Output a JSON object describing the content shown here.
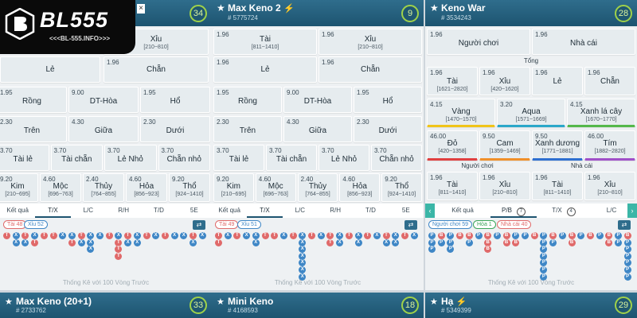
{
  "logo": {
    "brand": "BL555",
    "url": "<<<BL-555.INFO>>>"
  },
  "colors": {
    "header": "#1d5470",
    "red": "#e06a6a",
    "blue": "#3f87c6",
    "badge": "#9fd14a"
  },
  "panel1": {
    "close_icon": "×",
    "count": "34",
    "grid": {
      "r1": [
        {
          "name": "Xỉu",
          "range": "[210~810]"
        }
      ],
      "r2": [
        {
          "odds": "",
          "name": "Lẻ"
        },
        {
          "odds": "1.96",
          "name": "Chẵn"
        }
      ],
      "r3": [
        {
          "odds": "1.95",
          "name": "Rồng"
        },
        {
          "odds": "9.00",
          "name": "DT-Hòa"
        },
        {
          "odds": "1.95",
          "name": "Hổ"
        }
      ],
      "r4": [
        {
          "odds": "2.30",
          "name": "Trên"
        },
        {
          "odds": "4.30",
          "name": "Giữa"
        },
        {
          "odds": "2.30",
          "name": "Dưới"
        }
      ],
      "r5": [
        {
          "odds": "3.70",
          "name": "Tài lẻ"
        },
        {
          "odds": "3.70",
          "name": "Tài chẵn"
        },
        {
          "odds": "3.70",
          "name": "Lẻ Nhỏ"
        },
        {
          "odds": "3.70",
          "name": "Chẵn nhỏ"
        }
      ],
      "r6": [
        {
          "odds": "9.20",
          "name": "Kim",
          "range": "[210~695]"
        },
        {
          "odds": "4.60",
          "name": "Mộc",
          "range": "[696~763]"
        },
        {
          "odds": "2.40",
          "name": "Thủy",
          "range": "[764~855]"
        },
        {
          "odds": "4.60",
          "name": "Hỏa",
          "range": "[856~923]"
        },
        {
          "odds": "9.20",
          "name": "Thổ",
          "range": "[924~1410]"
        }
      ]
    },
    "tabs": [
      "Kết quả",
      "T/X",
      "L/C",
      "R/H",
      "T/D",
      "5E"
    ],
    "tally": [
      {
        "label": "Tài 48",
        "tone": "red"
      },
      {
        "label": "Xỉu 52",
        "tone": "blue"
      }
    ],
    "footer": "Thống Kê với 100 Vòng Trước"
  },
  "panel2": {
    "title": "Max Keno 2",
    "id": "# 5775724",
    "count": "9",
    "grid": {
      "r1": [
        {
          "odds": "1.96",
          "name": "Tài",
          "range": "[811~1410]"
        },
        {
          "odds": "1.96",
          "name": "Xỉu",
          "range": "[210~810]"
        }
      ],
      "r2": [
        {
          "odds": "1.96",
          "name": "Lẻ"
        },
        {
          "odds": "1.96",
          "name": "Chẵn"
        }
      ],
      "r3": [
        {
          "odds": "1.95",
          "name": "Rồng"
        },
        {
          "odds": "9.00",
          "name": "DT-Hòa"
        },
        {
          "odds": "1.95",
          "name": "Hổ"
        }
      ],
      "r4": [
        {
          "odds": "2.30",
          "name": "Trên"
        },
        {
          "odds": "4.30",
          "name": "Giữa"
        },
        {
          "odds": "2.30",
          "name": "Dưới"
        }
      ],
      "r5": [
        {
          "odds": "3.70",
          "name": "Tài lẻ"
        },
        {
          "odds": "3.70",
          "name": "Tài chẵn"
        },
        {
          "odds": "3.70",
          "name": "Lẻ Nhỏ"
        },
        {
          "odds": "3.70",
          "name": "Chẵn nhỏ"
        }
      ],
      "r6": [
        {
          "odds": "9.20",
          "name": "Kim",
          "range": "[210~695]"
        },
        {
          "odds": "4.60",
          "name": "Mộc",
          "range": "[696~763]"
        },
        {
          "odds": "2.40",
          "name": "Thủy",
          "range": "[764~855]"
        },
        {
          "odds": "4.60",
          "name": "Hỏa",
          "range": "[856~923]"
        },
        {
          "odds": "9.20",
          "name": "Thổ",
          "range": "[924~1410]"
        }
      ]
    },
    "tabs": [
      "Kết quả",
      "T/X",
      "L/C",
      "R/H",
      "T/D",
      "5E"
    ],
    "tally": [
      {
        "label": "Tài 49",
        "tone": "red"
      },
      {
        "label": "Xỉu 51",
        "tone": "blue"
      }
    ],
    "footer": "Thống Kê với 100 Vòng Trước"
  },
  "panel3": {
    "title": "Keno War",
    "id": "# 3534243",
    "count": "28",
    "top": [
      {
        "odds": "1.96",
        "name": "Người chơi"
      },
      {
        "odds": "1.96",
        "name": "Nhà cái"
      }
    ],
    "tong_label": "Tổng",
    "r2": [
      {
        "odds": "1.96",
        "name": "Tài",
        "range": "[1621~2820]"
      },
      {
        "odds": "1.96",
        "name": "Xỉu",
        "range": "[420~1620]"
      },
      {
        "odds": "1.96",
        "name": "Lẻ"
      },
      {
        "odds": "1.96",
        "name": "Chẵn"
      }
    ],
    "r3": [
      {
        "odds": "4.15",
        "name": "Vàng",
        "range": "[1470~1570]",
        "color": "#f0c419"
      },
      {
        "odds": "3.20",
        "name": "Aqua",
        "range": "[1571~1669]",
        "color": "#2aa7c9"
      },
      {
        "odds": "4.15",
        "name": "Xanh lá cây",
        "range": "[1670~1770]",
        "color": "#54b84a"
      }
    ],
    "r4": [
      {
        "odds": "46.00",
        "name": "Đỏ",
        "range": "[420~1358]",
        "color": "#e04040"
      },
      {
        "odds": "9.50",
        "name": "Cam",
        "range": "[1359~1469]",
        "color": "#f0902a"
      },
      {
        "odds": "9.50",
        "name": "Xanh dương",
        "range": "[1771~1881]",
        "color": "#2f6fd0"
      },
      {
        "odds": "46.00",
        "name": "Tím",
        "range": "[1882~2820]",
        "color": "#a050c8"
      }
    ],
    "nguoi_label": "Người chơi",
    "nhacai_label": "Nhà cái",
    "r5": [
      {
        "odds": "1.96",
        "name": "Tài",
        "range": "[811~1410]"
      },
      {
        "odds": "1.96",
        "name": "Xỉu",
        "range": "[210~810]"
      },
      {
        "odds": "1.96",
        "name": "Tài",
        "range": "[811~1410]"
      },
      {
        "odds": "1.96",
        "name": "Xỉu",
        "range": "[210~810]"
      }
    ],
    "tabs": [
      {
        "label": "Kết quả"
      },
      {
        "label": "P/B",
        "badge": "7"
      },
      {
        "label": "T/X",
        "badge": "4"
      },
      {
        "label": "L/C"
      }
    ],
    "nav_left": "‹",
    "nav_right": "›",
    "tally": [
      {
        "label": "Người chơi 59",
        "tone": "blue"
      },
      {
        "label": "Hòa 1",
        "tone": "green"
      },
      {
        "label": "Nhà cái 40",
        "tone": "red"
      }
    ],
    "footer": "Thống Kê với 100 Vòng Trước"
  },
  "bottom": [
    {
      "title": "Max Keno (20+1)",
      "id": "# 2733762",
      "count": "33"
    },
    {
      "title": "Mini Keno",
      "id": "# 4168593",
      "count": "18"
    },
    {
      "title": "Hạ",
      "id": "# 5349399",
      "count": "29"
    }
  ],
  "beads": {
    "p1": [
      [
        "T"
      ],
      [
        "X",
        "X"
      ],
      [
        "T",
        "X"
      ],
      [
        "X",
        "T"
      ],
      [
        "T"
      ],
      [
        "T"
      ],
      [
        "X"
      ],
      [
        "X",
        "T"
      ],
      [
        "T",
        "X"
      ],
      [
        "X",
        "X",
        "X"
      ],
      [
        "X"
      ],
      [
        "T"
      ],
      [
        "X",
        "T",
        "T",
        "T"
      ],
      [
        "T",
        "X"
      ],
      [
        "X",
        "X"
      ],
      [
        "T"
      ],
      [
        "X"
      ],
      [
        "T"
      ],
      [
        "X"
      ],
      [
        "X"
      ],
      [
        "T",
        "X"
      ],
      [
        "X"
      ]
    ],
    "p2": [
      [
        "T",
        "T"
      ],
      [
        "X"
      ],
      [
        "T"
      ],
      [
        "X"
      ],
      [
        "X",
        "X"
      ],
      [
        "T"
      ],
      [
        "T"
      ],
      [
        "X"
      ],
      [
        "T"
      ],
      [
        "X",
        "X",
        "X",
        "X",
        "X",
        "X",
        "X"
      ],
      [
        "T"
      ],
      [
        "X"
      ],
      [
        "T",
        "T"
      ],
      [
        "X",
        "X"
      ],
      [
        "T"
      ],
      [
        "X",
        "X"
      ],
      [
        "T"
      ],
      [
        "X"
      ],
      [
        "T",
        "X"
      ],
      [
        "X",
        "X"
      ],
      [
        "T"
      ],
      [
        "X"
      ]
    ],
    "p3": [
      [
        "P",
        "P",
        "P"
      ],
      [
        "B",
        "P"
      ],
      [
        "P",
        "P",
        "P"
      ],
      [
        "B"
      ],
      [
        "B",
        "P"
      ],
      [
        "P"
      ],
      [
        "B",
        "B",
        "B"
      ],
      [
        "P"
      ],
      [
        "B",
        "B"
      ],
      [
        "P",
        "B"
      ],
      [
        "P"
      ],
      [
        "B"
      ],
      [
        "P",
        "P",
        "P",
        "P",
        "P",
        "P",
        "P"
      ],
      [
        "B",
        "P"
      ],
      [
        "P"
      ],
      [
        "B",
        "B"
      ],
      [
        "P"
      ],
      [
        "B"
      ],
      [
        "P"
      ],
      [
        "B",
        "B"
      ],
      [
        "P",
        "P"
      ],
      [
        "B",
        "P",
        "P",
        "P",
        "P",
        "P",
        "P"
      ]
    ]
  }
}
